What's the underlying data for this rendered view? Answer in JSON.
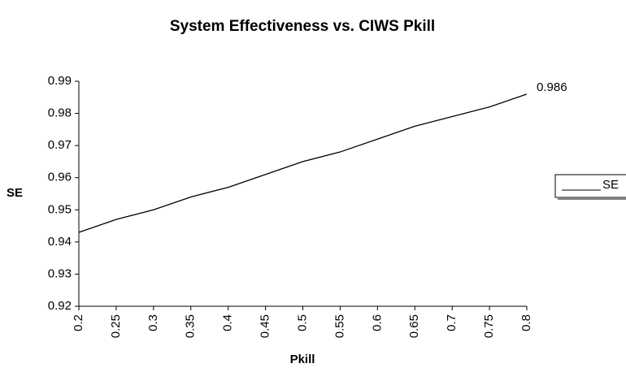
{
  "chart_data": {
    "type": "line",
    "title": "System Effectiveness vs. CIWS Pkill",
    "x_label": "Pkill",
    "y_label": "SE",
    "x": [
      0.2,
      0.25,
      0.3,
      0.35,
      0.4,
      0.45,
      0.5,
      0.55,
      0.6,
      0.65,
      0.7,
      0.75,
      0.8
    ],
    "series": [
      {
        "name": "SE",
        "color": "#000000",
        "values": [
          0.943,
          0.947,
          0.95,
          0.954,
          0.957,
          0.961,
          0.965,
          0.968,
          0.972,
          0.976,
          0.979,
          0.982,
          0.986
        ]
      }
    ],
    "xlim": [
      0.2,
      0.8
    ],
    "xticks": [
      0.2,
      0.25,
      0.3,
      0.35,
      0.4,
      0.45,
      0.5,
      0.55,
      0.6,
      0.65,
      0.7,
      0.75,
      0.8
    ],
    "ylim": [
      0.92,
      0.99
    ],
    "yticks": [
      0.92,
      0.93,
      0.94,
      0.95,
      0.96,
      0.97,
      0.98,
      0.99
    ],
    "grid": false,
    "legend": "right"
  }
}
